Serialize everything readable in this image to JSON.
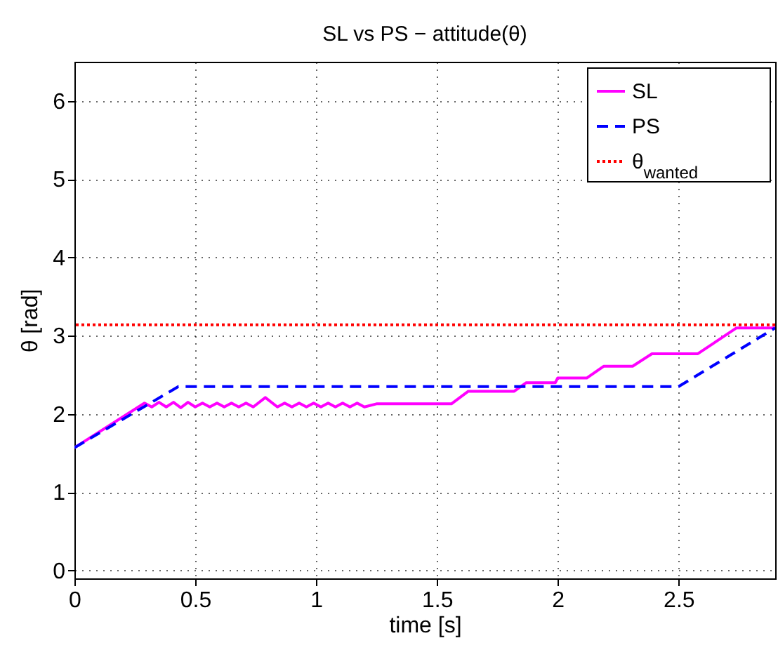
{
  "chart_data": {
    "type": "line",
    "title": "SL vs PS − attitude(θ)",
    "xlabel": "time [s]",
    "ylabel": "θ [rad]",
    "xlim": [
      0,
      2.9
    ],
    "ylim": [
      -0.1,
      6.5
    ],
    "xticks": [
      0,
      0.5,
      1,
      1.5,
      2,
      2.5
    ],
    "yticks": [
      0,
      1,
      2,
      3,
      4,
      5,
      6
    ],
    "grid": true,
    "legend": "top right",
    "marker": "none",
    "series": [
      {
        "name": "SL",
        "color": "#ff00ff",
        "line_style": "solid",
        "x": [
          0,
          0.29,
          0.32,
          0.35,
          0.38,
          0.41,
          0.44,
          0.47,
          0.5,
          0.53,
          0.56,
          0.59,
          0.62,
          0.65,
          0.68,
          0.71,
          0.74,
          0.79,
          0.84,
          0.87,
          0.9,
          0.93,
          0.96,
          0.99,
          1.02,
          1.05,
          1.08,
          1.11,
          1.14,
          1.17,
          1.2,
          1.25,
          1.56,
          1.63,
          1.82,
          1.87,
          1.99,
          2.0,
          2.12,
          2.19,
          2.31,
          2.39,
          2.58,
          2.74,
          2.9
        ],
        "values": [
          1.57,
          2.14,
          2.09,
          2.15,
          2.09,
          2.15,
          2.08,
          2.15,
          2.09,
          2.14,
          2.09,
          2.14,
          2.09,
          2.14,
          2.09,
          2.14,
          2.09,
          2.21,
          2.09,
          2.14,
          2.09,
          2.14,
          2.09,
          2.14,
          2.09,
          2.14,
          2.09,
          2.14,
          2.09,
          2.14,
          2.09,
          2.13,
          2.13,
          2.29,
          2.29,
          2.4,
          2.4,
          2.46,
          2.46,
          2.61,
          2.61,
          2.77,
          2.77,
          3.1,
          3.1
        ]
      },
      {
        "name": "PS",
        "color": "#0000ff",
        "line_style": "dashed",
        "x": [
          0,
          0.43,
          2.5,
          2.9
        ],
        "values": [
          1.57,
          2.35,
          2.35,
          3.1
        ]
      }
    ],
    "ref_lines": [
      {
        "axis": "y",
        "value": 3.14,
        "label": "θ$_{wanted}$",
        "color": "#ff0000",
        "line_style": "dotted"
      }
    ]
  }
}
